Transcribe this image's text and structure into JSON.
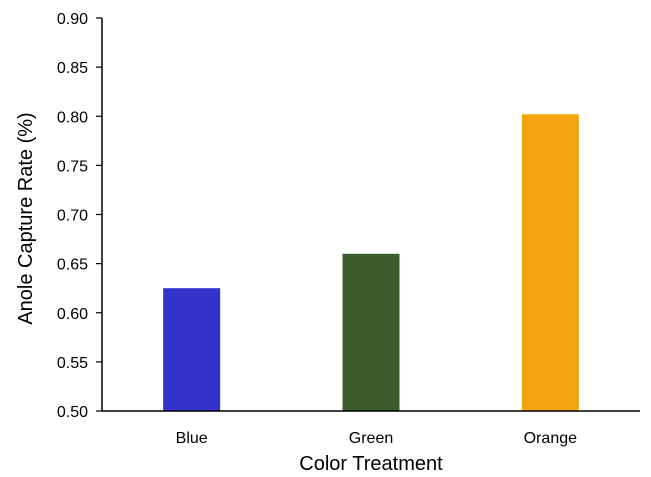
{
  "chart_data": {
    "type": "bar",
    "categories": [
      "Blue",
      "Green",
      "Orange"
    ],
    "values": [
      0.625,
      0.66,
      0.802
    ],
    "colors": [
      "#3333cc",
      "#3d5c2b",
      "#f4a30f"
    ],
    "title": "",
    "xlabel": "Color Treatment",
    "ylabel": "Anole Capture Rate (%)",
    "ylim": [
      0.5,
      0.9
    ],
    "yticks": [
      "0.50",
      "0.55",
      "0.60",
      "0.65",
      "0.70",
      "0.75",
      "0.80",
      "0.85",
      "0.90"
    ],
    "grid": false,
    "legend": "none"
  }
}
